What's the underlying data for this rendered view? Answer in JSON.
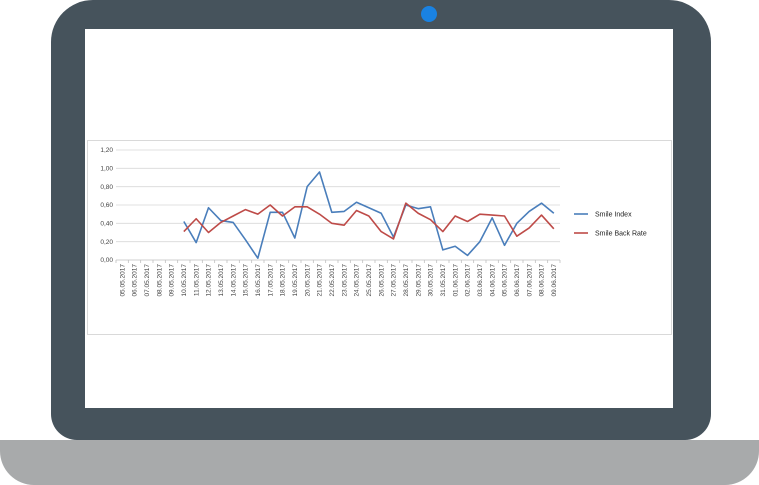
{
  "chart_data": {
    "type": "line",
    "title": "",
    "xlabel": "",
    "ylabel": "",
    "ylim": [
      0,
      1.2
    ],
    "yticks": [
      "0,00",
      "0,20",
      "0,40",
      "0,60",
      "0,80",
      "1,00",
      "1,20"
    ],
    "grid": true,
    "legend_position": "right",
    "categories": [
      "05.05.2017",
      "06.05.2017",
      "07.05.2017",
      "08.05.2017",
      "09.05.2017",
      "10.05.2017",
      "11.05.2017",
      "12.05.2017",
      "13.05.2017",
      "14.05.2017",
      "15.05.2017",
      "16.05.2017",
      "17.05.2017",
      "18.05.2017",
      "19.05.2017",
      "20.05.2017",
      "21.05.2017",
      "22.05.2017",
      "23.05.2017",
      "24.05.2017",
      "25.05.2017",
      "26.05.2017",
      "27.05.2017",
      "28.05.2017",
      "29.05.2017",
      "30.05.2017",
      "31.05.2017",
      "01.06.2017",
      "02.06.2017",
      "03.06.2017",
      "04.06.2017",
      "05.06.2017",
      "06.06.2017",
      "07.06.2017",
      "08.06.2017",
      "09.06.2017"
    ],
    "series": [
      {
        "name": "Smile Index",
        "color": "#4a7ebb",
        "values": [
          null,
          null,
          null,
          null,
          null,
          0.42,
          0.19,
          0.57,
          0.43,
          0.41,
          0.22,
          0.02,
          0.52,
          0.52,
          0.24,
          0.8,
          0.96,
          0.52,
          0.53,
          0.63,
          0.57,
          0.51,
          0.25,
          0.6,
          0.56,
          0.58,
          0.11,
          0.15,
          0.05,
          0.2,
          0.46,
          0.16,
          0.4,
          0.53,
          0.62,
          0.51
        ]
      },
      {
        "name": "Smile Back Rate",
        "color": "#be4b48",
        "values": [
          null,
          null,
          null,
          null,
          null,
          0.31,
          0.45,
          0.3,
          0.41,
          0.48,
          0.55,
          0.5,
          0.6,
          0.48,
          0.58,
          0.58,
          0.5,
          0.4,
          0.38,
          0.54,
          0.48,
          0.31,
          0.23,
          0.62,
          0.51,
          0.44,
          0.31,
          0.48,
          0.42,
          0.5,
          0.49,
          0.48,
          0.26,
          0.35,
          0.49,
          0.34
        ]
      }
    ]
  }
}
